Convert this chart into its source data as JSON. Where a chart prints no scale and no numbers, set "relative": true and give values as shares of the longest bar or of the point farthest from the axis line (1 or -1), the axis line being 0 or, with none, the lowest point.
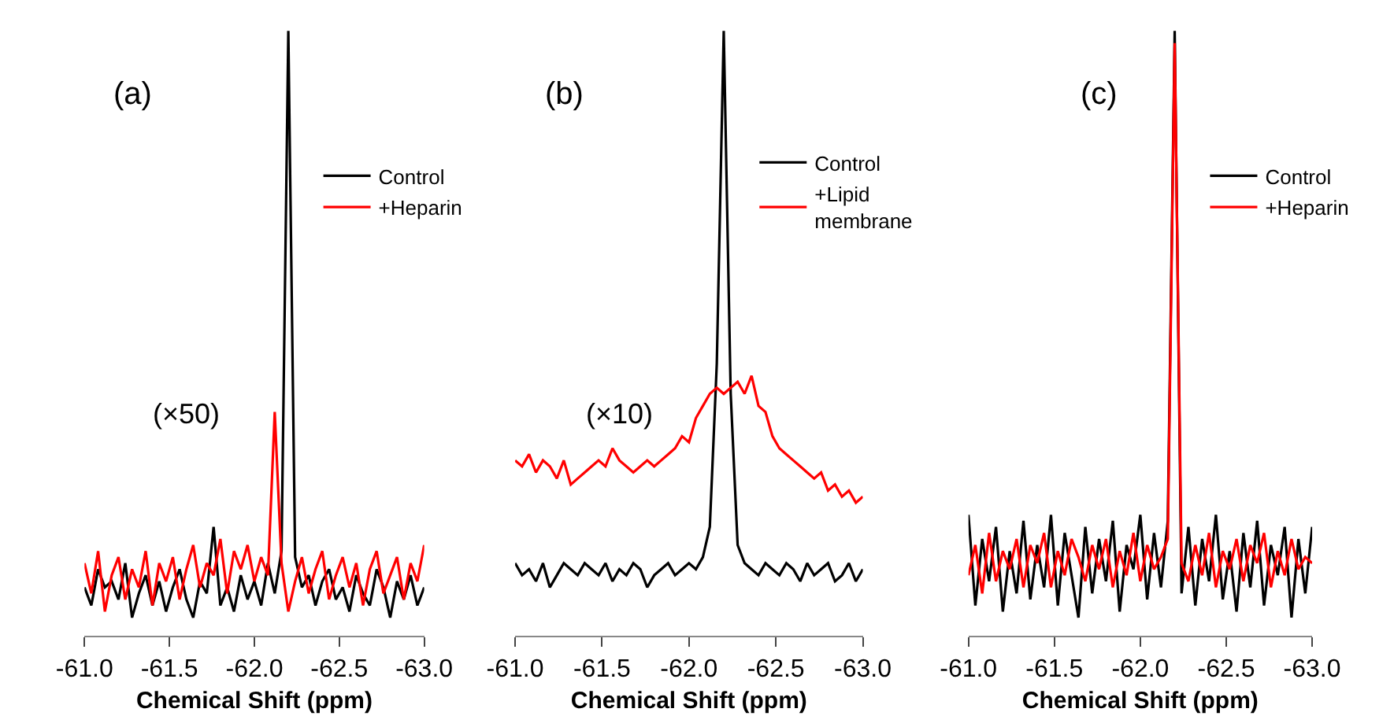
{
  "chart_data": [
    {
      "type": "line",
      "relative": true,
      "xlabel": "Chemical Shift (ppm)",
      "xlim": [
        -61.0,
        -63.0
      ],
      "xticks": [
        {
          "value": -61.0,
          "label": "-61.0"
        },
        {
          "value": -61.5,
          "label": "-61.5"
        },
        {
          "value": -62.0,
          "label": "-62.0"
        },
        {
          "value": -62.5,
          "label": "-62.5"
        },
        {
          "value": -63.0,
          "label": "-63.0"
        }
      ],
      "tick_labels": "x",
      "grid": false,
      "legend": "right",
      "line_style": "solid",
      "annotations": [
        "(a)",
        "(×50)"
      ],
      "x": [
        -61.0,
        -61.04,
        -61.08,
        -61.12,
        -61.16,
        -61.2,
        -61.24,
        -61.28,
        -61.32,
        -61.36,
        -61.4,
        -61.44,
        -61.48,
        -61.52,
        -61.56,
        -61.6,
        -61.64,
        -61.68,
        -61.72,
        -61.76,
        -61.8,
        -61.84,
        -61.88,
        -61.92,
        -61.96,
        -62.0,
        -62.04,
        -62.08,
        -62.12,
        -62.16,
        -62.2,
        -62.24,
        -62.28,
        -62.32,
        -62.36,
        -62.4,
        -62.44,
        -62.48,
        -62.52,
        -62.56,
        -62.6,
        -62.64,
        -62.68,
        -62.72,
        -62.76,
        -62.8,
        -62.84,
        -62.88,
        -62.92,
        -62.96,
        -63.0
      ],
      "series": [
        {
          "name": "Control",
          "color": "#000000",
          "values": [
            0.08,
            0.05,
            0.11,
            0.08,
            0.09,
            0.06,
            0.12,
            0.03,
            0.07,
            0.1,
            0.05,
            0.09,
            0.04,
            0.08,
            0.11,
            0.06,
            0.03,
            0.09,
            0.07,
            0.18,
            0.05,
            0.08,
            0.04,
            0.1,
            0.06,
            0.09,
            0.05,
            0.12,
            0.07,
            0.14,
            1.0,
            0.13,
            0.08,
            0.1,
            0.05,
            0.09,
            0.11,
            0.06,
            0.08,
            0.04,
            0.1,
            0.07,
            0.05,
            0.11,
            0.08,
            0.03,
            0.09,
            0.06,
            0.1,
            0.05,
            0.08
          ]
        },
        {
          "name": "+Heparin",
          "color": "#ff0000",
          "values": [
            0.12,
            0.07,
            0.14,
            0.04,
            0.1,
            0.13,
            0.06,
            0.11,
            0.08,
            0.14,
            0.05,
            0.12,
            0.09,
            0.13,
            0.06,
            0.11,
            0.15,
            0.08,
            0.12,
            0.1,
            0.16,
            0.07,
            0.14,
            0.11,
            0.15,
            0.09,
            0.13,
            0.1,
            0.37,
            0.12,
            0.04,
            0.09,
            0.13,
            0.07,
            0.11,
            0.14,
            0.06,
            0.1,
            0.13,
            0.08,
            0.12,
            0.05,
            0.11,
            0.14,
            0.07,
            0.1,
            0.13,
            0.06,
            0.12,
            0.09,
            0.15
          ]
        }
      ]
    },
    {
      "type": "line",
      "relative": true,
      "xlabel": "Chemical Shift (ppm)",
      "xlim": [
        -61.0,
        -63.0
      ],
      "xticks": [
        {
          "value": -61.0,
          "label": "-61.0"
        },
        {
          "value": -61.5,
          "label": "-61.5"
        },
        {
          "value": -62.0,
          "label": "-62.0"
        },
        {
          "value": -62.5,
          "label": "-62.5"
        },
        {
          "value": -63.0,
          "label": "-63.0"
        }
      ],
      "tick_labels": "x",
      "grid": false,
      "legend": "right",
      "line_style": "solid",
      "annotations": [
        "(b)",
        "(×10)"
      ],
      "x": [
        -61.0,
        -61.04,
        -61.08,
        -61.12,
        -61.16,
        -61.2,
        -61.24,
        -61.28,
        -61.32,
        -61.36,
        -61.4,
        -61.44,
        -61.48,
        -61.52,
        -61.56,
        -61.6,
        -61.64,
        -61.68,
        -61.72,
        -61.76,
        -61.8,
        -61.84,
        -61.88,
        -61.92,
        -61.96,
        -62.0,
        -62.04,
        -62.08,
        -62.12,
        -62.16,
        -62.2,
        -62.24,
        -62.28,
        -62.32,
        -62.36,
        -62.4,
        -62.44,
        -62.48,
        -62.52,
        -62.56,
        -62.6,
        -62.64,
        -62.68,
        -62.72,
        -62.76,
        -62.8,
        -62.84,
        -62.88,
        -62.92,
        -62.96,
        -63.0
      ],
      "series": [
        {
          "name": "Control",
          "color": "#000000",
          "values": [
            0.12,
            0.1,
            0.11,
            0.09,
            0.12,
            0.08,
            0.1,
            0.12,
            0.11,
            0.1,
            0.12,
            0.11,
            0.1,
            0.12,
            0.09,
            0.11,
            0.1,
            0.12,
            0.11,
            0.08,
            0.1,
            0.11,
            0.12,
            0.1,
            0.11,
            0.12,
            0.11,
            0.13,
            0.18,
            0.45,
            1.0,
            0.4,
            0.15,
            0.12,
            0.11,
            0.1,
            0.12,
            0.11,
            0.1,
            0.12,
            0.11,
            0.09,
            0.12,
            0.1,
            0.11,
            0.12,
            0.09,
            0.1,
            0.12,
            0.09,
            0.11
          ]
        },
        {
          "name": "+Lipid membrane",
          "color": "#ff0000",
          "values": [
            0.29,
            0.28,
            0.3,
            0.27,
            0.29,
            0.28,
            0.26,
            0.29,
            0.25,
            0.26,
            0.27,
            0.28,
            0.29,
            0.28,
            0.31,
            0.29,
            0.28,
            0.27,
            0.28,
            0.29,
            0.28,
            0.29,
            0.3,
            0.31,
            0.33,
            0.32,
            0.36,
            0.38,
            0.4,
            0.41,
            0.4,
            0.41,
            0.42,
            0.4,
            0.43,
            0.38,
            0.37,
            0.33,
            0.31,
            0.3,
            0.29,
            0.28,
            0.27,
            0.26,
            0.27,
            0.24,
            0.25,
            0.23,
            0.24,
            0.22,
            0.23
          ]
        }
      ]
    },
    {
      "type": "line",
      "relative": true,
      "xlabel": "Chemical Shift (ppm)",
      "xlim": [
        -61.0,
        -63.0
      ],
      "xticks": [
        {
          "value": -61.0,
          "label": "-61.0"
        },
        {
          "value": -61.5,
          "label": "-61.5"
        },
        {
          "value": -62.0,
          "label": "-62.0"
        },
        {
          "value": -62.5,
          "label": "-62.5"
        },
        {
          "value": -63.0,
          "label": "-63.0"
        }
      ],
      "tick_labels": "x",
      "grid": false,
      "legend": "right",
      "line_style": "solid",
      "annotations": [
        "(c)"
      ],
      "x": [
        -61.0,
        -61.04,
        -61.08,
        -61.12,
        -61.16,
        -61.2,
        -61.24,
        -61.28,
        -61.32,
        -61.36,
        -61.4,
        -61.44,
        -61.48,
        -61.52,
        -61.56,
        -61.6,
        -61.64,
        -61.68,
        -61.72,
        -61.76,
        -61.8,
        -61.84,
        -61.88,
        -61.92,
        -61.96,
        -62.0,
        -62.04,
        -62.08,
        -62.12,
        -62.16,
        -62.2,
        -62.24,
        -62.28,
        -62.32,
        -62.36,
        -62.4,
        -62.44,
        -62.48,
        -62.52,
        -62.56,
        -62.6,
        -62.64,
        -62.68,
        -62.72,
        -62.76,
        -62.8,
        -62.84,
        -62.88,
        -62.92,
        -62.96,
        -63.0
      ],
      "series": [
        {
          "name": "Control",
          "color": "#000000",
          "values": [
            0.2,
            0.05,
            0.16,
            0.09,
            0.18,
            0.04,
            0.14,
            0.07,
            0.19,
            0.06,
            0.15,
            0.08,
            0.2,
            0.05,
            0.17,
            0.1,
            0.03,
            0.18,
            0.07,
            0.16,
            0.09,
            0.19,
            0.04,
            0.15,
            0.11,
            0.2,
            0.06,
            0.17,
            0.08,
            0.19,
            1.0,
            0.07,
            0.18,
            0.05,
            0.16,
            0.09,
            0.2,
            0.06,
            0.14,
            0.04,
            0.17,
            0.08,
            0.19,
            0.05,
            0.15,
            0.1,
            0.18,
            0.03,
            0.16,
            0.07,
            0.18
          ]
        },
        {
          "name": "+Heparin",
          "color": "#ff0000",
          "values": [
            0.1,
            0.15,
            0.07,
            0.17,
            0.09,
            0.14,
            0.11,
            0.16,
            0.08,
            0.15,
            0.12,
            0.17,
            0.08,
            0.14,
            0.1,
            0.16,
            0.13,
            0.09,
            0.15,
            0.11,
            0.16,
            0.08,
            0.14,
            0.1,
            0.17,
            0.09,
            0.15,
            0.11,
            0.13,
            0.16,
            0.98,
            0.12,
            0.09,
            0.15,
            0.1,
            0.17,
            0.08,
            0.14,
            0.11,
            0.16,
            0.09,
            0.15,
            0.12,
            0.17,
            0.08,
            0.14,
            0.1,
            0.16,
            0.11,
            0.13,
            0.12
          ]
        }
      ]
    }
  ]
}
